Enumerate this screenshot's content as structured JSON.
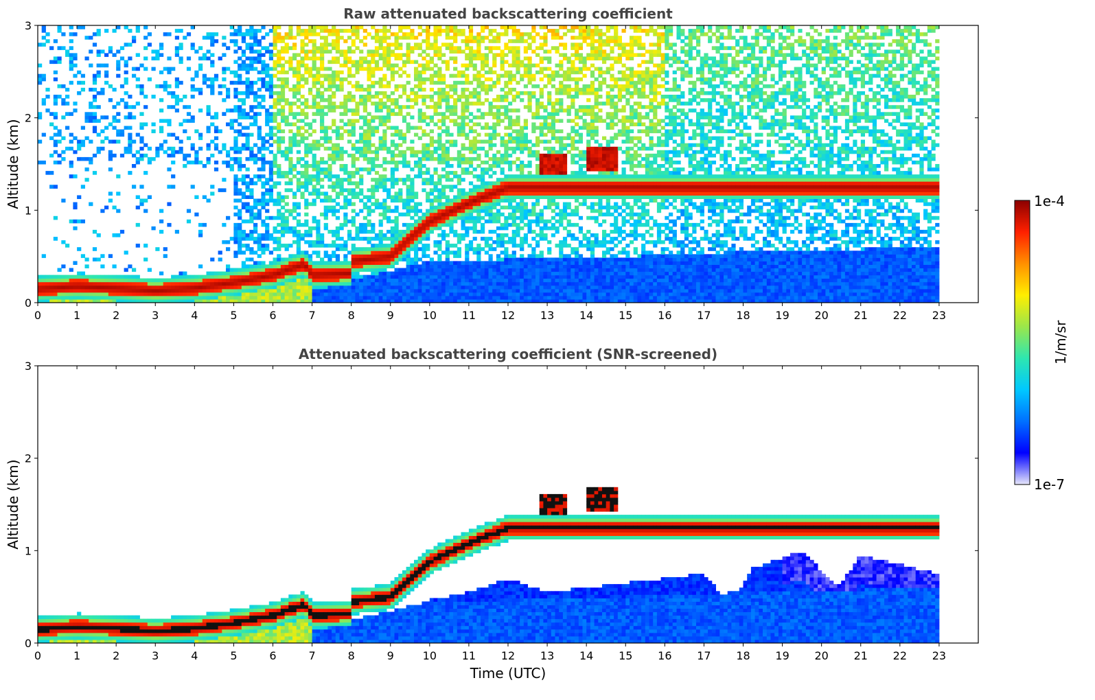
{
  "chart_data": [
    {
      "type": "heatmap",
      "title": "Raw attenuated backscattering coefficient",
      "xlabel": "",
      "ylabel": "Altitude (km)",
      "xlim": [
        0,
        24
      ],
      "ylim": [
        0,
        3
      ],
      "x_ticks": [
        "0",
        "1",
        "2",
        "3",
        "4",
        "5",
        "6",
        "7",
        "8",
        "9",
        "10",
        "11",
        "12",
        "13",
        "14",
        "15",
        "16",
        "17",
        "18",
        "19",
        "20",
        "21",
        "22",
        "23"
      ],
      "y_ticks": [
        "0",
        "1",
        "2",
        "3"
      ],
      "data_end_hour": 23,
      "features": {
        "boundary_layer_core": [
          {
            "x": 0,
            "y": 0.15
          },
          {
            "x": 1,
            "y": 0.18
          },
          {
            "x": 2,
            "y": 0.16
          },
          {
            "x": 3,
            "y": 0.13
          },
          {
            "x": 4,
            "y": 0.16
          },
          {
            "x": 5,
            "y": 0.22
          },
          {
            "x": 6,
            "y": 0.3
          },
          {
            "x": 6.8,
            "y": 0.42
          },
          {
            "x": 7,
            "y": 0.3
          },
          {
            "x": 8,
            "y": 0.32
          },
          {
            "x": 8,
            "y": 0.45
          },
          {
            "x": 9,
            "y": 0.5
          },
          {
            "x": 9.5,
            "y": 0.7
          },
          {
            "x": 10,
            "y": 0.88
          },
          {
            "x": 11,
            "y": 1.08
          },
          {
            "x": 12,
            "y": 1.25
          }
        ],
        "elevated_layers": [
          {
            "x_start": 12.8,
            "x_end": 13.5,
            "y": 1.5
          },
          {
            "x_start": 14.0,
            "x_end": 14.8,
            "y": 1.55
          }
        ],
        "near_surface_aerosol_top": [
          {
            "x": 7,
            "y": 0.15
          },
          {
            "x": 10,
            "y": 0.45
          },
          {
            "x": 15,
            "y": 0.5
          },
          {
            "x": 18,
            "y": 0.55
          },
          {
            "x": 23,
            "y": 0.6
          }
        ]
      }
    },
    {
      "type": "heatmap",
      "title": "Attenuated backscattering coefficient (SNR-screened)",
      "xlabel": "Time (UTC)",
      "ylabel": "Altitude (km)",
      "xlim": [
        0,
        24
      ],
      "ylim": [
        0,
        3
      ],
      "x_ticks": [
        "0",
        "1",
        "2",
        "3",
        "4",
        "5",
        "6",
        "7",
        "8",
        "9",
        "10",
        "11",
        "12",
        "13",
        "14",
        "15",
        "16",
        "17",
        "18",
        "19",
        "20",
        "21",
        "22",
        "23"
      ],
      "y_ticks": [
        "0",
        "1",
        "2",
        "3"
      ],
      "data_end_hour": 23,
      "features": {
        "screened_aerosol_top": [
          {
            "x": 9.8,
            "y": 0.45
          },
          {
            "x": 11,
            "y": 0.55
          },
          {
            "x": 12,
            "y": 0.7
          },
          {
            "x": 13,
            "y": 0.55
          },
          {
            "x": 15,
            "y": 0.65
          },
          {
            "x": 17,
            "y": 0.75
          },
          {
            "x": 17.7,
            "y": 0.4
          },
          {
            "x": 18.2,
            "y": 0.8
          },
          {
            "x": 19.5,
            "y": 1.0
          },
          {
            "x": 20.4,
            "y": 0.6
          },
          {
            "x": 21,
            "y": 0.95
          },
          {
            "x": 23,
            "y": 0.75
          }
        ]
      }
    }
  ],
  "colorbar": {
    "label": "1/m/sr",
    "max_label": "1e-4",
    "min_label": "1e-7",
    "scale": "log",
    "colormap": [
      "#e6e6fa",
      "#0000ff",
      "#0070ff",
      "#00c8ff",
      "#2ee6b0",
      "#9be64b",
      "#ffee00",
      "#ff9000",
      "#ff2000",
      "#8b0000"
    ]
  }
}
